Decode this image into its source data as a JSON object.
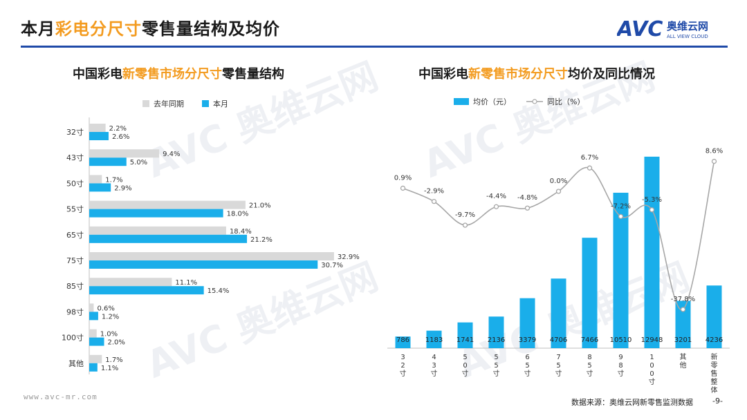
{
  "header": {
    "title_pre": "本月",
    "title_hl": "彩电分尺寸",
    "title_post": "零售量结构及均价",
    "logo_text": "AVC",
    "logo_cn": "奥维云网",
    "logo_en": "ALL VIEW CLOUD"
  },
  "colors": {
    "current": "#1aaeea",
    "prev": "#d9d9d9",
    "line": "#a6a6a6",
    "accent": "#f39b1f",
    "rule": "#1f4aa8"
  },
  "watermark": {
    "text": "AVC 奥维云网"
  },
  "chart_data": [
    {
      "type": "bar",
      "orientation": "horizontal",
      "title_pre": "中国彩电",
      "title_hl": "新零售市场分尺寸",
      "title_post": "零售量结构",
      "categories": [
        "32寸",
        "43寸",
        "50寸",
        "55寸",
        "65寸",
        "75寸",
        "85寸",
        "98寸",
        "100寸",
        "其他"
      ],
      "series": [
        {
          "name": "去年同期",
          "values": [
            2.2,
            9.4,
            1.7,
            21.0,
            18.4,
            32.9,
            11.1,
            0.6,
            1.0,
            1.7
          ]
        },
        {
          "name": "本月",
          "values": [
            2.6,
            5.0,
            2.9,
            18.0,
            21.2,
            30.7,
            15.4,
            1.2,
            2.0,
            1.1
          ]
        }
      ],
      "labels_prev": [
        "2.2%",
        "9.4%",
        "1.7%",
        "21.0%",
        "18.4%",
        "32.9%",
        "11.1%",
        "0.6%",
        "1.0%",
        "1.7%"
      ],
      "labels_cur": [
        "2.6%",
        "5.0%",
        "2.9%",
        "18.0%",
        "21.2%",
        "30.7%",
        "15.4%",
        "1.2%",
        "2.0%",
        "1.1%"
      ],
      "unit": "%",
      "xlim": [
        0,
        33
      ]
    },
    {
      "type": "bar+line",
      "title_pre": "中国彩电",
      "title_hl": "新零售市场分尺寸",
      "title_post": "均价及同比情况",
      "categories": [
        "32寸",
        "43寸",
        "50寸",
        "55寸",
        "65寸",
        "75寸",
        "85寸",
        "98寸",
        "100寸",
        "其他",
        "新零售整体"
      ],
      "bar_series": {
        "name": "均价（元）",
        "values": [
          786,
          1183,
          1741,
          2136,
          3379,
          4706,
          7466,
          10510,
          12948,
          3201,
          4236
        ]
      },
      "bar_labels": [
        "786",
        "1183",
        "1741",
        "2136",
        "3379",
        "4706",
        "7466",
        "10510",
        "12948",
        "3201",
        "4236"
      ],
      "line_series": {
        "name": "同比（%）",
        "values": [
          0.9,
          -2.9,
          -9.7,
          -4.4,
          -4.8,
          0.0,
          6.7,
          -7.2,
          -5.3,
          -37.8,
          8.6
        ]
      },
      "line_labels": [
        "0.9%",
        "-2.9%",
        "-9.7%",
        "-4.4%",
        "-4.8%",
        "0.0%",
        "6.7%",
        "-7.2%",
        "-5.3%",
        "-37.8%",
        "8.6%"
      ],
      "ylim_bar": [
        0,
        13500
      ]
    }
  ],
  "footer": {
    "website": "www.avc-mr.com",
    "source": "数据来源：奥维云网新零售监测数据",
    "page": "-9-"
  }
}
